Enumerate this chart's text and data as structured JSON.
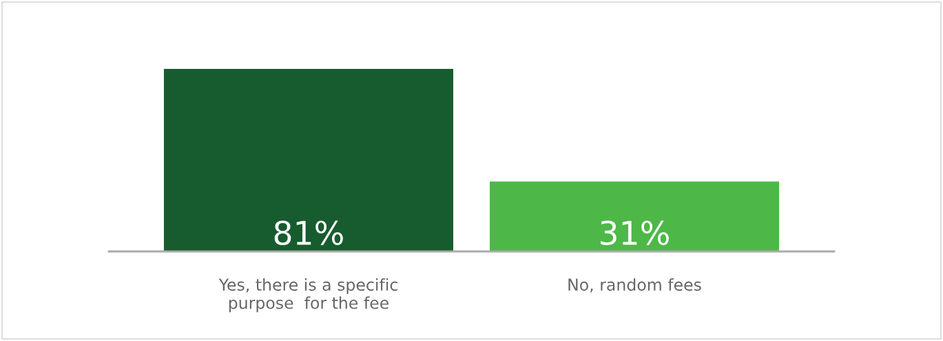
{
  "chart_data": {
    "type": "bar",
    "categories": [
      "Yes, there is a specific\npurpose  for the fee",
      "No, random fees"
    ],
    "values": [
      81,
      31
    ],
    "colors": [
      "#175c2e",
      "#4db848"
    ],
    "value_labels": [
      "81%",
      "31%"
    ],
    "grid": false,
    "legend": false
  }
}
